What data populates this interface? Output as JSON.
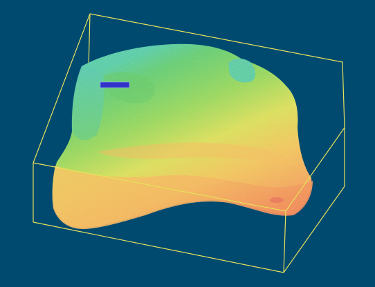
{
  "viewer": {
    "background_color": "#004a70",
    "bounding_box_color": "#e6e25a",
    "point_cloud_colormap": [
      "#24c7a6",
      "#49c952",
      "#a6d92a",
      "#e8dd2f",
      "#f2a93a",
      "#ee6a2c"
    ],
    "tag_label": "",
    "tag_background": "#3232c8"
  }
}
